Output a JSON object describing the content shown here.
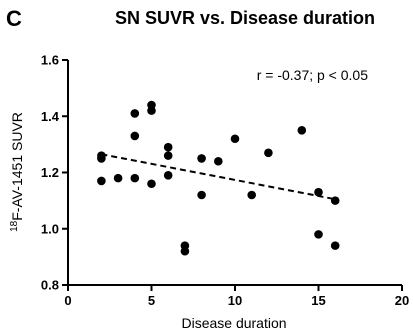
{
  "panel_label": "C",
  "chart_data": {
    "type": "scatter",
    "title": "SN SUVR vs. Disease duration",
    "xlabel": "Disease duration",
    "ylabel_sup": "18",
    "ylabel_main": "F-AV-1451 SUVR",
    "xlim": [
      0,
      20
    ],
    "ylim": [
      0.8,
      1.6
    ],
    "xticks": [
      0,
      5,
      10,
      15,
      20
    ],
    "yticks": [
      0.8,
      1.0,
      1.2,
      1.4,
      1.6
    ],
    "ytick_labels": [
      "0.8",
      "1.0",
      "1.2",
      "1.4",
      "1.6"
    ],
    "annotation": "r = -0.37; p < 0.05",
    "grid": false,
    "points": [
      {
        "x": 2,
        "y": 1.26
      },
      {
        "x": 2,
        "y": 1.25
      },
      {
        "x": 2,
        "y": 1.17
      },
      {
        "x": 3,
        "y": 1.18
      },
      {
        "x": 4,
        "y": 1.41
      },
      {
        "x": 4,
        "y": 1.33
      },
      {
        "x": 4,
        "y": 1.18
      },
      {
        "x": 5,
        "y": 1.44
      },
      {
        "x": 5,
        "y": 1.42
      },
      {
        "x": 5,
        "y": 1.16
      },
      {
        "x": 6,
        "y": 1.29
      },
      {
        "x": 6,
        "y": 1.26
      },
      {
        "x": 6,
        "y": 1.19
      },
      {
        "x": 7,
        "y": 0.94
      },
      {
        "x": 7,
        "y": 0.92
      },
      {
        "x": 8,
        "y": 1.25
      },
      {
        "x": 8,
        "y": 1.12
      },
      {
        "x": 9,
        "y": 1.24
      },
      {
        "x": 10,
        "y": 1.32
      },
      {
        "x": 11,
        "y": 1.12
      },
      {
        "x": 12,
        "y": 1.27
      },
      {
        "x": 14,
        "y": 1.35
      },
      {
        "x": 15,
        "y": 1.13
      },
      {
        "x": 15,
        "y": 0.98
      },
      {
        "x": 16,
        "y": 1.1
      },
      {
        "x": 16,
        "y": 0.94
      }
    ],
    "trendline": {
      "x": [
        2,
        16
      ],
      "y": [
        1.265,
        1.105
      ],
      "style": "dashed"
    },
    "marker_color": "#000000"
  }
}
